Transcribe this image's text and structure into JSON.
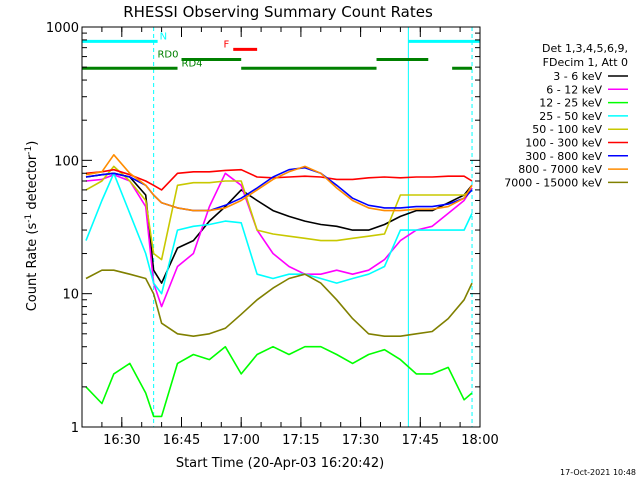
{
  "chart_data": {
    "type": "line",
    "title": "RHESSI Observing Summary Count Rates",
    "xlabel": "Start Time (20-Apr-03 16:20:42)",
    "ylabel": "Count Rate (s⁻¹ detector⁻¹)",
    "xlim": [
      "16:20",
      "18:00"
    ],
    "ylim": [
      1,
      1000
    ],
    "y_scale": "log",
    "x_ticks": [
      "16:30",
      "16:45",
      "17:00",
      "17:15",
      "17:30",
      "17:45",
      "18:00"
    ],
    "y_ticks": [
      "1",
      "10",
      "100",
      "1000"
    ],
    "legend_header": [
      "Det 1,3,4,5,6,9,",
      "FDecim 1, Att 0"
    ],
    "legend_position": "right",
    "timestamp": "17-Oct-2021 10:48",
    "x": [
      "16:21",
      "16:25",
      "16:28",
      "16:32",
      "16:36",
      "16:38",
      "16:40",
      "16:44",
      "16:48",
      "16:52",
      "16:56",
      "17:00",
      "17:04",
      "17:08",
      "17:12",
      "17:16",
      "17:20",
      "17:24",
      "17:28",
      "17:32",
      "17:36",
      "17:40",
      "17:44",
      "17:48",
      "17:52",
      "17:56",
      "17:58"
    ],
    "series": [
      {
        "name": "3 - 6 keV",
        "color": "#000000",
        "values": [
          75,
          78,
          80,
          75,
          55,
          15,
          12,
          22,
          25,
          35,
          45,
          60,
          50,
          42,
          38,
          35,
          33,
          32,
          30,
          30,
          33,
          38,
          42,
          42,
          48,
          55,
          65
        ]
      },
      {
        "name": "6 - 12 keV",
        "color": "#ff00ff",
        "values": [
          70,
          72,
          78,
          70,
          45,
          12,
          8,
          16,
          20,
          45,
          80,
          65,
          30,
          20,
          16,
          14,
          14,
          15,
          14,
          15,
          18,
          25,
          30,
          32,
          40,
          50,
          62
        ]
      },
      {
        "name": "12 - 25 keV",
        "color": "#00ff00",
        "values": [
          2,
          1.5,
          2.5,
          3,
          1.8,
          1.2,
          1.2,
          3,
          3.5,
          3.2,
          4,
          2.5,
          3.5,
          4,
          3.5,
          4,
          4,
          3.5,
          3,
          3.5,
          3.8,
          3.2,
          2.5,
          2.5,
          2.8,
          1.6,
          1.8
        ]
      },
      {
        "name": "25 - 50 keV",
        "color": "#00ffff",
        "values": [
          25,
          50,
          80,
          40,
          20,
          12,
          10,
          30,
          32,
          33,
          35,
          34,
          14,
          13,
          14,
          14,
          13,
          12,
          13,
          14,
          16,
          30,
          30,
          30,
          30,
          30,
          40
        ]
      },
      {
        "name": "50 - 100 keV",
        "color": "#c8c800",
        "values": [
          60,
          70,
          90,
          70,
          50,
          20,
          18,
          65,
          68,
          68,
          70,
          70,
          30,
          28,
          27,
          26,
          25,
          25,
          26,
          27,
          28,
          55,
          55,
          55,
          55,
          55,
          60
        ]
      },
      {
        "name": "100 - 300 keV",
        "color": "#ff0000",
        "values": [
          80,
          82,
          85,
          78,
          70,
          65,
          60,
          80,
          82,
          82,
          84,
          85,
          75,
          74,
          75,
          76,
          75,
          72,
          72,
          74,
          75,
          74,
          75,
          75,
          76,
          76,
          70
        ]
      },
      {
        "name": "300 - 800 keV",
        "color": "#0000ff",
        "values": [
          75,
          78,
          80,
          75,
          65,
          55,
          48,
          44,
          42,
          42,
          46,
          52,
          62,
          75,
          85,
          88,
          80,
          65,
          52,
          46,
          44,
          44,
          45,
          45,
          47,
          52,
          60
        ]
      },
      {
        "name": "800 - 7000 keV",
        "color": "#ff8c00",
        "values": [
          78,
          82,
          110,
          80,
          65,
          55,
          48,
          44,
          42,
          42,
          44,
          50,
          60,
          72,
          82,
          90,
          80,
          62,
          50,
          44,
          42,
          42,
          43,
          43,
          45,
          52,
          65
        ]
      },
      {
        "name": "7000 - 15000 keV",
        "color": "#808000",
        "values": [
          13,
          15,
          15,
          14,
          13,
          10,
          6,
          5,
          4.8,
          5,
          5.5,
          7,
          9,
          11,
          13,
          14,
          12,
          9,
          6.5,
          5,
          4.8,
          4.8,
          5,
          5.2,
          6.5,
          9,
          12
        ]
      }
    ],
    "flags": [
      {
        "name": "N",
        "color": "#00ffff",
        "y": 780,
        "segments": [
          [
            "16:20",
            "16:39"
          ],
          [
            "17:42",
            "18:00"
          ]
        ]
      },
      {
        "name": "F",
        "color": "#ff0000",
        "y": 680,
        "segments": [
          [
            "16:58",
            "17:04"
          ]
        ]
      },
      {
        "name": "RD0",
        "color": "#008000",
        "y": 570,
        "segments": [
          [
            "16:45",
            "17:00"
          ],
          [
            "17:34",
            "17:47"
          ]
        ]
      },
      {
        "name": "RD4",
        "color": "#008000",
        "y": 490,
        "segments": [
          [
            "16:20",
            "16:44"
          ],
          [
            "17:00",
            "17:34"
          ],
          [
            "17:53",
            "17:58"
          ]
        ]
      }
    ],
    "vertical_markers": [
      {
        "x": "16:38",
        "color": "#00ffff",
        "style": "dashed"
      },
      {
        "x": "17:42",
        "color": "#00ffff",
        "style": "solid"
      },
      {
        "x": "17:58",
        "color": "#00ffff",
        "style": "dashed"
      }
    ]
  }
}
